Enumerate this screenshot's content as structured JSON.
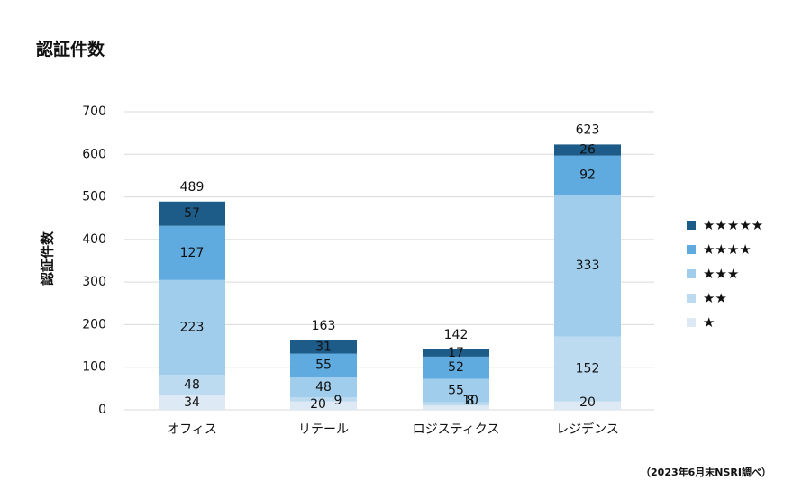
{
  "chart_data": {
    "type": "bar",
    "stacked": true,
    "title": "認証件数",
    "ylabel": "認証件数",
    "xlabel": "",
    "categories": [
      "オフィス",
      "リテール",
      "ロジスティクス",
      "レジデンス"
    ],
    "totals": [
      489,
      163,
      142,
      623
    ],
    "ylim": [
      0,
      700
    ],
    "yticks": [
      0,
      100,
      200,
      300,
      400,
      500,
      600,
      700
    ],
    "grid": true,
    "legend_position": "right",
    "series": [
      {
        "name": "★",
        "color": "#dde9f5",
        "values": [
          34,
          20,
          10,
          20
        ]
      },
      {
        "name": "★★",
        "color": "#bcdaf0",
        "values": [
          48,
          9,
          8,
          152
        ]
      },
      {
        "name": "★★★",
        "color": "#a0cdec",
        "values": [
          223,
          48,
          55,
          333
        ]
      },
      {
        "name": "★★★★",
        "color": "#5fabe0",
        "values": [
          127,
          55,
          52,
          92
        ]
      },
      {
        "name": "★★★★★",
        "color": "#1d5c88",
        "values": [
          57,
          31,
          17,
          26
        ]
      }
    ],
    "legend_order": [
      "★★★★★",
      "★★★★",
      "★★★",
      "★★",
      "★"
    ],
    "source_note": "（2023年6月末NSRI調べ）"
  }
}
